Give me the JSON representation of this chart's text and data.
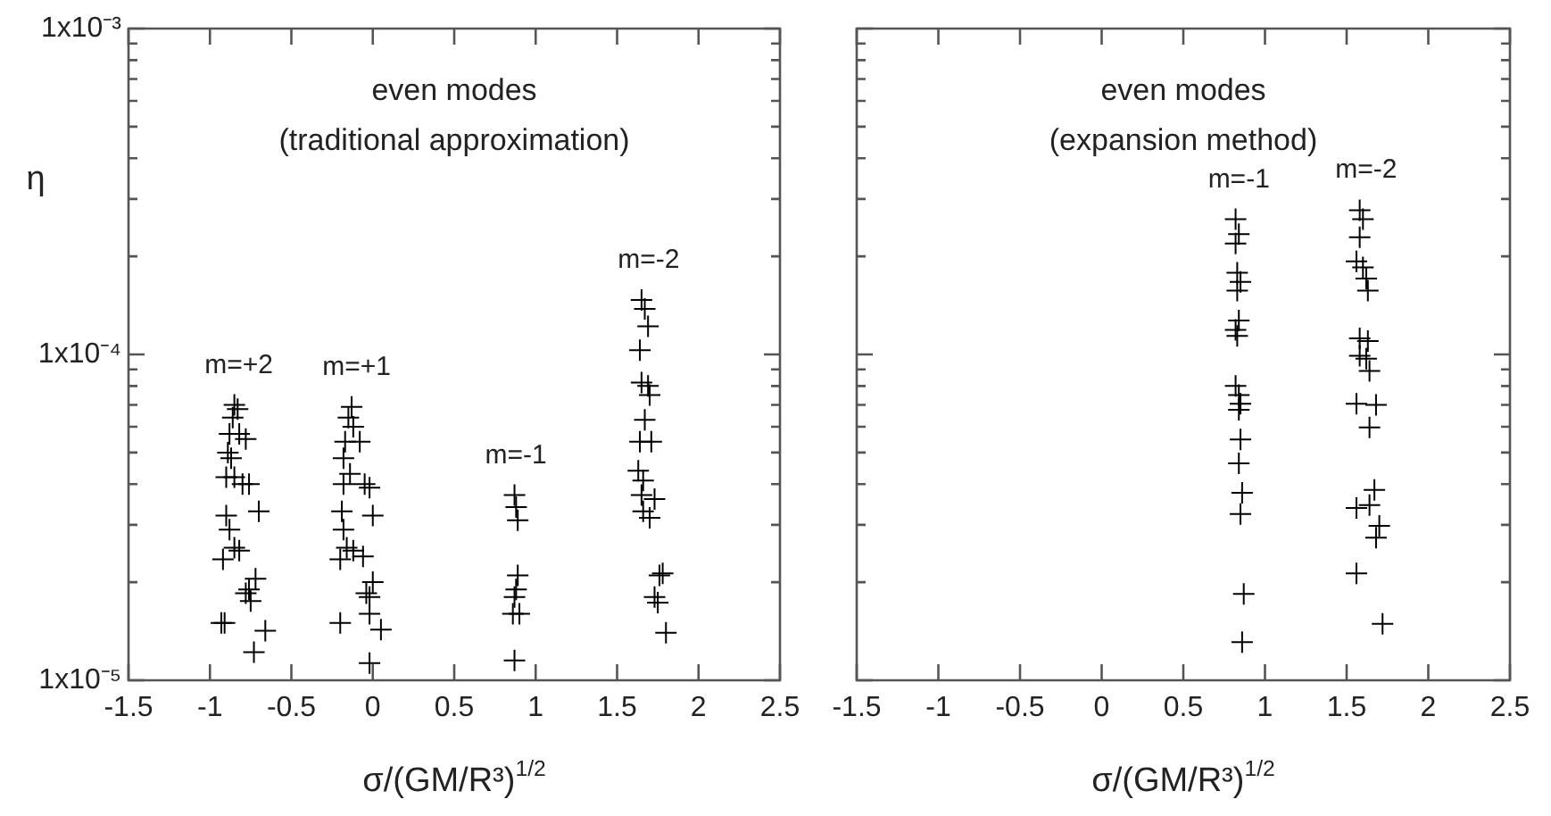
{
  "chart_data": [
    {
      "type": "scatter",
      "title": "even modes",
      "subtitle": "(traditional approximation)",
      "xlabel": "σ/(GM/R³)$^{1/2}$",
      "ylabel": "η",
      "xlim": [
        -1.5,
        2.5
      ],
      "xticks": [
        -1.5,
        -1,
        -0.5,
        0,
        0.5,
        1,
        1.5,
        2,
        2.5
      ],
      "ylim": [
        1e-05,
        0.001
      ],
      "yticks": [
        {
          "value": 1e-05,
          "label": "1x10⁻⁵"
        },
        {
          "value": 2e-05,
          "label": null
        },
        {
          "value": 3e-05,
          "label": null
        },
        {
          "value": 4e-05,
          "label": null
        },
        {
          "value": 5e-05,
          "label": null
        },
        {
          "value": 6e-05,
          "label": null
        },
        {
          "value": 7e-05,
          "label": null
        },
        {
          "value": 8e-05,
          "label": null
        },
        {
          "value": 9e-05,
          "label": null
        },
        {
          "value": 0.0001,
          "label": "1x10⁻⁴"
        },
        {
          "value": 0.0002,
          "label": null
        },
        {
          "value": 0.0003,
          "label": null
        },
        {
          "value": 0.0004,
          "label": null
        },
        {
          "value": 0.0005,
          "label": null
        },
        {
          "value": 0.0006,
          "label": null
        },
        {
          "value": 0.0007,
          "label": null
        },
        {
          "value": 0.0008,
          "label": null
        },
        {
          "value": 0.0009,
          "label": null
        },
        {
          "value": 0.001,
          "label": "1x10⁻³"
        }
      ],
      "log": "y",
      "grid": false,
      "marker": "cross",
      "series": [
        {
          "name": "m=+2",
          "color": "#000000",
          "x": [
            -0.85,
            -0.83,
            -0.86,
            -0.82,
            -0.88,
            -0.78,
            -0.89,
            -0.87,
            -0.9,
            -0.85,
            -0.8,
            -0.76,
            -0.7,
            -0.9,
            -0.88,
            -0.85,
            -0.82,
            -0.92,
            -0.72,
            -0.76,
            -0.78,
            -0.75,
            -0.91,
            -0.93,
            -0.66,
            -0.73
          ],
          "values": [
            7e-05,
            6.8e-05,
            6.4e-05,
            5.7e-05,
            5.7e-05,
            5.5e-05,
            5e-05,
            4.8e-05,
            4.2e-05,
            4.2e-05,
            4e-05,
            4e-05,
            3.3e-05,
            3.2e-05,
            2.9e-05,
            2.55e-05,
            2.5e-05,
            2.35e-05,
            2.05e-05,
            1.9e-05,
            1.85e-05,
            1.75e-05,
            1.5e-05,
            1.5e-05,
            1.42e-05,
            1.22e-05
          ]
        },
        {
          "name": "m=+1",
          "color": "#000000",
          "x": [
            -0.13,
            -0.15,
            -0.12,
            -0.17,
            -0.08,
            -0.18,
            -0.14,
            -0.18,
            -0.05,
            -0.02,
            -0.19,
            0.0,
            -0.18,
            -0.16,
            -0.12,
            -0.2,
            -0.06,
            0.0,
            -0.04,
            -0.02,
            -0.02,
            -0.2,
            0.05,
            -0.02
          ],
          "values": [
            6.9e-05,
            6.4e-05,
            6e-05,
            5.4e-05,
            5.4e-05,
            4.8e-05,
            4.3e-05,
            4e-05,
            4e-05,
            3.9e-05,
            3.3e-05,
            3.2e-05,
            2.9e-05,
            2.55e-05,
            2.5e-05,
            2.35e-05,
            2.4e-05,
            2e-05,
            1.85e-05,
            1.8e-05,
            1.6e-05,
            1.5e-05,
            1.43e-05,
            1.13e-05
          ]
        },
        {
          "name": "m=-1",
          "color": "#000000",
          "x": [
            0.87,
            0.88,
            0.89,
            0.89,
            0.88,
            0.87,
            0.86,
            0.9,
            0.87
          ],
          "values": [
            3.7e-05,
            3.4e-05,
            3.1e-05,
            2.1e-05,
            1.9e-05,
            1.8e-05,
            1.6e-05,
            1.6e-05,
            1.15e-05
          ]
        },
        {
          "name": "m=-2",
          "color": "#000000",
          "x": [
            1.65,
            1.67,
            1.69,
            1.64,
            1.65,
            1.69,
            1.7,
            1.67,
            1.64,
            1.71,
            1.63,
            1.66,
            1.65,
            1.73,
            1.66,
            1.7,
            1.78,
            1.76,
            1.73,
            1.75,
            1.8
          ],
          "values": [
            0.000147,
            0.000138,
            0.000122,
            0.000103,
            8.2e-05,
            8e-05,
            7.5e-05,
            6.3e-05,
            5.4e-05,
            5.4e-05,
            4.4e-05,
            4.1e-05,
            3.7e-05,
            3.6e-05,
            3.3e-05,
            3.15e-05,
            2.13e-05,
            2.1e-05,
            1.8e-05,
            1.73e-05,
            1.4e-05
          ]
        }
      ]
    },
    {
      "type": "scatter",
      "title": "even modes",
      "subtitle": "(expansion method)",
      "xlabel": "σ/(GM/R³)$^{1/2}$",
      "xlim": [
        -1.5,
        2.5
      ],
      "xticks": [
        -1.5,
        -1,
        -0.5,
        0,
        0.5,
        1,
        1.5,
        2,
        2.5
      ],
      "ylim": [
        1e-05,
        0.001
      ],
      "yticks": [
        1e-05,
        2e-05,
        3e-05,
        4e-05,
        5e-05,
        6e-05,
        7e-05,
        8e-05,
        9e-05,
        0.0001,
        0.0002,
        0.0003,
        0.0004,
        0.0005,
        0.0006,
        0.0007,
        0.0008,
        0.0009,
        0.001
      ],
      "log": "y",
      "grid": false,
      "marker": "cross",
      "tick_labels": "x",
      "series": [
        {
          "name": "m=-1",
          "color": "#000000",
          "x": [
            0.82,
            0.84,
            0.82,
            0.83,
            0.85,
            0.83,
            0.84,
            0.82,
            0.83,
            0.82,
            0.84,
            0.85,
            0.84,
            0.85,
            0.84,
            0.86,
            0.85,
            0.87,
            0.86
          ],
          "values": [
            0.00026,
            0.000234,
            0.000219,
            0.000178,
            0.000167,
            0.000157,
            0.000127,
            0.000119,
            0.000114,
            8e-05,
            7.5e-05,
            7.06e-05,
            6.76e-05,
            5.48e-05,
            4.63e-05,
            3.76e-05,
            3.24e-05,
            1.84e-05,
            1.31e-05
          ]
        },
        {
          "name": "m=-2",
          "color": "#000000",
          "x": [
            1.58,
            1.6,
            1.58,
            1.56,
            1.6,
            1.62,
            1.63,
            1.58,
            1.63,
            1.58,
            1.62,
            1.64,
            1.56,
            1.68,
            1.64,
            1.67,
            1.64,
            1.56,
            1.7,
            1.68,
            1.56,
            1.72
          ],
          "values": [
            0.000277,
            0.00026,
            0.000229,
            0.000193,
            0.000185,
            0.000171,
            0.000157,
            0.000112,
            0.00011,
            9.9e-05,
            9.7e-05,
            8.9e-05,
            7.06e-05,
            7e-05,
            5.97e-05,
            3.84e-05,
            3.45e-05,
            3.38e-05,
            2.98e-05,
            2.74e-05,
            2.13e-05,
            1.49e-05
          ]
        }
      ]
    }
  ]
}
